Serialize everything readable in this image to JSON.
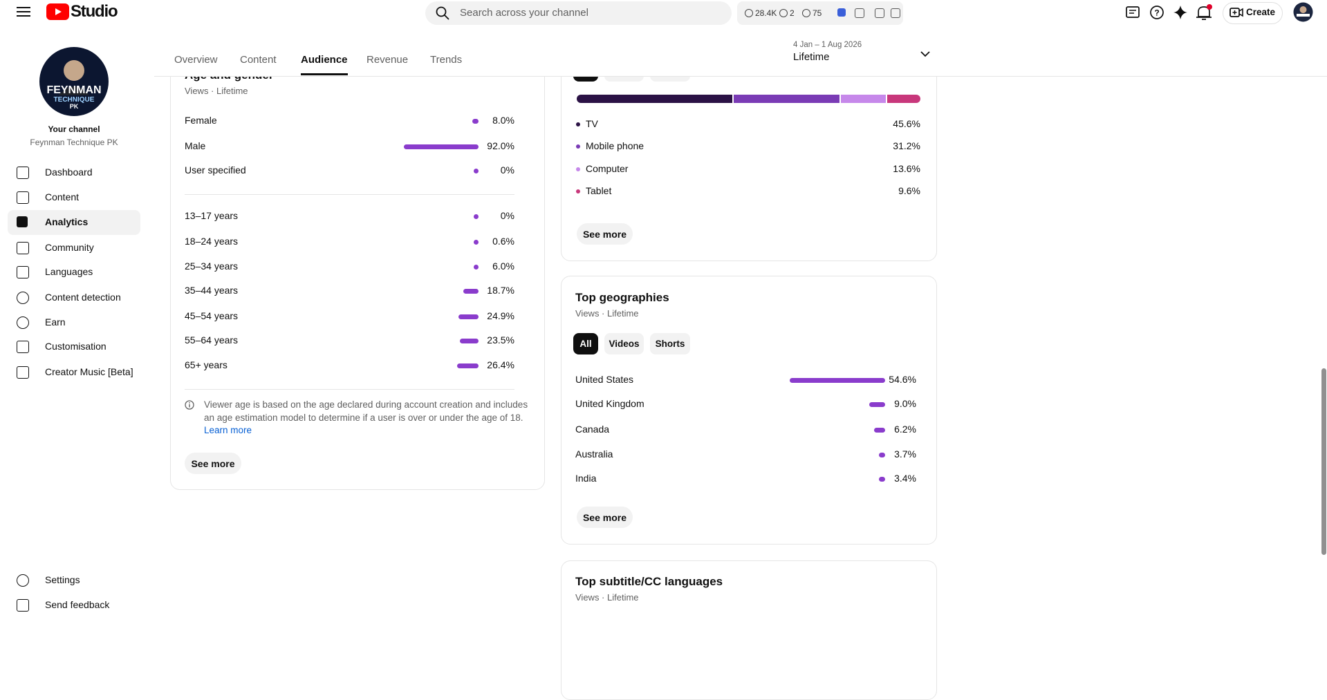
{
  "header": {
    "logo": "Studio",
    "search_placeholder": "Search across your channel",
    "stats": [
      "28.4K",
      "2",
      "75"
    ],
    "create": "Create"
  },
  "sidebar": {
    "avatar_text": [
      "FEYNMAN",
      "TECHNIQUE",
      "PK"
    ],
    "channel_label": "Your channel",
    "channel_name": "Feynman Technique PK",
    "nav": [
      "Dashboard",
      "Content",
      "Analytics",
      "Community",
      "Languages",
      "Content detection",
      "Earn",
      "Customisation",
      "Creator Music [Beta]"
    ],
    "active_nav": 2,
    "footer": [
      "Settings",
      "Send feedback"
    ]
  },
  "tabs": [
    "Overview",
    "Content",
    "Audience",
    "Revenue",
    "Trends"
  ],
  "active_tab": 2,
  "date_range": {
    "range": "4 Jan – 1 Aug 2026",
    "period": "Lifetime"
  },
  "age_gender": {
    "title": "Age and gender",
    "subtitle": "Views · Lifetime",
    "gender": [
      {
        "label": "Female",
        "value": 8.0,
        "value_label": "8.0%"
      },
      {
        "label": "Male",
        "value": 92.0,
        "value_label": "92.0%"
      },
      {
        "label": "User specified",
        "value": 0,
        "value_label": "0%"
      }
    ],
    "age": [
      {
        "label": "13–17 years",
        "value": 0,
        "value_label": "0%"
      },
      {
        "label": "18–24 years",
        "value": 0.6,
        "value_label": "0.6%"
      },
      {
        "label": "25–34 years",
        "value": 6.0,
        "value_label": "6.0%"
      },
      {
        "label": "35–44 years",
        "value": 18.7,
        "value_label": "18.7%"
      },
      {
        "label": "45–54 years",
        "value": 24.9,
        "value_label": "24.9%"
      },
      {
        "label": "55–64 years",
        "value": 23.5,
        "value_label": "23.5%"
      },
      {
        "label": "65+ years",
        "value": 26.4,
        "value_label": "26.4%"
      }
    ],
    "note": [
      "Viewer age is based on the age declared during account creation and includes",
      "an age estimation model to determine if a user is over or under the age of 18."
    ],
    "learn_more": "Learn more",
    "see_more": "See more"
  },
  "devices": {
    "segments": [
      {
        "label": "TV",
        "value": 45.6,
        "value_label": "45.6%",
        "color": "#2b1245"
      },
      {
        "label": "Mobile phone",
        "value": 31.2,
        "value_label": "31.2%",
        "color": "#7a3bb5"
      },
      {
        "label": "Computer",
        "value": 13.6,
        "value_label": "13.6%",
        "color": "#c688ea"
      },
      {
        "label": "Tablet",
        "value": 9.6,
        "value_label": "9.6%",
        "color": "#c8377b"
      }
    ],
    "see_more": "See more"
  },
  "geographies": {
    "title": "Top geographies",
    "subtitle": "Views · Lifetime",
    "chips": [
      "All",
      "Videos",
      "Shorts"
    ],
    "active_chip": 0,
    "rows": [
      {
        "label": "United States",
        "value": 54.6,
        "value_label": "54.6%"
      },
      {
        "label": "United Kingdom",
        "value": 9.0,
        "value_label": "9.0%"
      },
      {
        "label": "Canada",
        "value": 6.2,
        "value_label": "6.2%"
      },
      {
        "label": "Australia",
        "value": 3.7,
        "value_label": "3.7%"
      },
      {
        "label": "India",
        "value": 3.4,
        "value_label": "3.4%"
      }
    ],
    "see_more": "See more"
  },
  "subtitles": {
    "title": "Top subtitle/CC languages",
    "subtitle": "Views · Lifetime"
  }
}
